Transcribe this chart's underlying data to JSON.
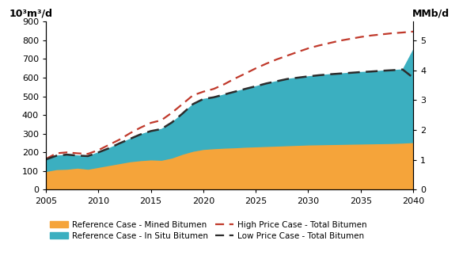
{
  "years": [
    2005,
    2006,
    2007,
    2008,
    2009,
    2010,
    2011,
    2012,
    2013,
    2014,
    2015,
    2016,
    2017,
    2018,
    2019,
    2020,
    2021,
    2022,
    2023,
    2024,
    2025,
    2026,
    2027,
    2028,
    2029,
    2030,
    2031,
    2032,
    2033,
    2034,
    2035,
    2036,
    2037,
    2038,
    2039,
    2040
  ],
  "mined_bitumen": [
    100,
    110,
    112,
    118,
    112,
    122,
    132,
    142,
    152,
    158,
    162,
    160,
    172,
    192,
    208,
    218,
    222,
    225,
    227,
    230,
    232,
    234,
    236,
    238,
    240,
    242,
    243,
    244,
    245,
    246,
    247,
    248,
    249,
    250,
    252,
    255
  ],
  "insitu_bitumen": [
    62,
    72,
    75,
    65,
    68,
    78,
    90,
    105,
    120,
    138,
    152,
    165,
    188,
    215,
    250,
    268,
    273,
    285,
    298,
    310,
    322,
    335,
    345,
    355,
    360,
    365,
    370,
    374,
    377,
    380,
    383,
    385,
    388,
    390,
    392,
    495
  ],
  "high_price": [
    165,
    195,
    200,
    195,
    192,
    212,
    240,
    268,
    302,
    332,
    358,
    372,
    412,
    458,
    505,
    525,
    540,
    565,
    595,
    622,
    650,
    675,
    698,
    718,
    738,
    757,
    772,
    785,
    798,
    808,
    818,
    826,
    832,
    838,
    842,
    847
  ],
  "low_price": [
    162,
    182,
    188,
    183,
    180,
    200,
    222,
    248,
    272,
    296,
    314,
    325,
    360,
    407,
    458,
    486,
    495,
    510,
    525,
    540,
    554,
    569,
    581,
    593,
    600,
    607,
    613,
    618,
    622,
    626,
    630,
    633,
    637,
    640,
    644,
    600
  ],
  "color_mined": "#F5A43A",
  "color_insitu": "#3BAFC0",
  "color_high": "#C0392B",
  "color_low": "#2C2C2C",
  "ylim_left": [
    0,
    900
  ],
  "ylim_right": [
    0,
    5.625
  ],
  "yticks_left": [
    0,
    100,
    200,
    300,
    400,
    500,
    600,
    700,
    800,
    900
  ],
  "yticks_right_vals": [
    0,
    1,
    2,
    3,
    4,
    5
  ],
  "yticks_right_labels": [
    "0",
    "1",
    "2",
    "3",
    "4",
    "5"
  ],
  "ylabel_left": "10³m³/d",
  "ylabel_right": "MMb/d",
  "xticks": [
    2005,
    2010,
    2015,
    2020,
    2025,
    2030,
    2035,
    2040
  ],
  "legend_items": [
    {
      "label": "Reference Case - Mined Bitumen",
      "type": "patch",
      "color": "#F5A43A"
    },
    {
      "label": "Reference Case - In Situ Bitumen",
      "type": "patch",
      "color": "#3BAFC0"
    },
    {
      "label": "High Price Case - Total Bitumen",
      "type": "line",
      "color": "#C0392B"
    },
    {
      "label": "Low Price Case - Total Bitumen",
      "type": "line",
      "color": "#2C2C2C"
    }
  ],
  "background_color": "#FFFFFF"
}
